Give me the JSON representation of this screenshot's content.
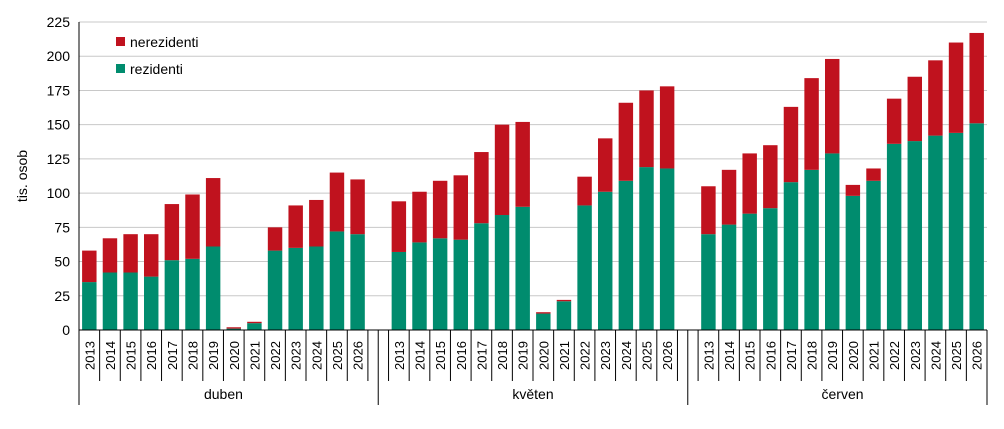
{
  "chart_data": {
    "type": "bar",
    "stacked": true,
    "ylabel": "tis. osob",
    "ylim": [
      0,
      225
    ],
    "yticks": [
      0,
      25,
      50,
      75,
      100,
      125,
      150,
      175,
      200,
      225
    ],
    "grid": true,
    "legend_position": "top-left",
    "groups": [
      {
        "label": "duben",
        "years": [
          "2013",
          "2014",
          "2015",
          "2016",
          "2017",
          "2018",
          "2019",
          "2020",
          "2021",
          "2022",
          "2023",
          "2024",
          "2025",
          "2026"
        ]
      },
      {
        "label": "květen",
        "years": [
          "2013",
          "2014",
          "2015",
          "2016",
          "2017",
          "2018",
          "2019",
          "2020",
          "2021",
          "2022",
          "2023",
          "2024",
          "2025",
          "2026"
        ]
      },
      {
        "label": "červen",
        "years": [
          "2013",
          "2014",
          "2015",
          "2016",
          "2017",
          "2018",
          "2019",
          "2020",
          "2021",
          "2022",
          "2023",
          "2024",
          "2025",
          "2026"
        ]
      }
    ],
    "series": [
      {
        "name": "rezidenti",
        "color": "#008C6E",
        "values": [
          [
            35,
            42,
            42,
            39,
            51,
            52,
            61,
            1,
            5,
            58,
            60,
            61,
            72,
            70
          ],
          [
            57,
            64,
            67,
            66,
            78,
            84,
            90,
            12,
            21,
            91,
            101,
            109,
            119,
            118
          ],
          [
            70,
            77,
            85,
            89,
            108,
            117,
            129,
            98,
            109,
            136,
            138,
            142,
            144,
            151
          ]
        ]
      },
      {
        "name": "nerezidenti",
        "color": "#C0121E",
        "values": [
          [
            23,
            25,
            28,
            31,
            41,
            47,
            50,
            1,
            1,
            17,
            31,
            34,
            43,
            40
          ],
          [
            37,
            37,
            42,
            47,
            52,
            66,
            62,
            1,
            1,
            21,
            39,
            57,
            56,
            60
          ],
          [
            35,
            40,
            44,
            46,
            55,
            67,
            69,
            8,
            9,
            33,
            47,
            55,
            66,
            66
          ]
        ]
      }
    ]
  }
}
